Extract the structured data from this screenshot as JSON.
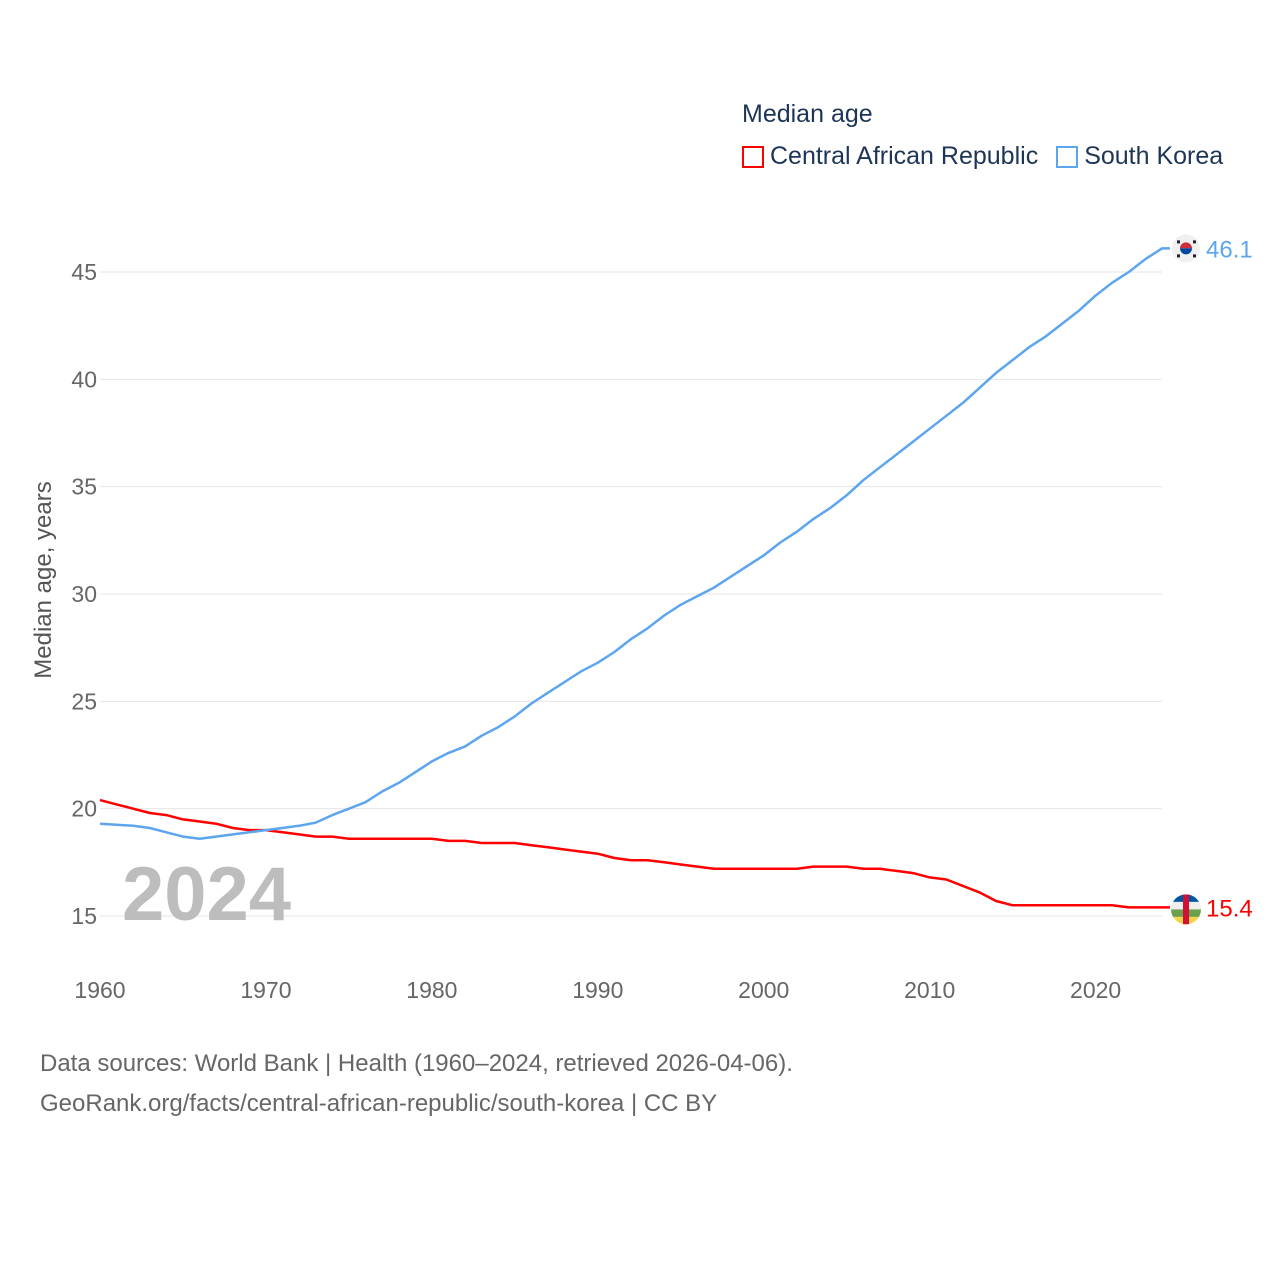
{
  "chart_data": {
    "type": "line",
    "title": "Median age",
    "ylabel": "Median age, years",
    "xlabel": "",
    "xlim": [
      1960,
      2024
    ],
    "ylim": [
      12.5,
      47
    ],
    "xticks": [
      1960,
      1970,
      1980,
      1990,
      2000,
      2010,
      2020
    ],
    "yticks": [
      15,
      20,
      25,
      30,
      35,
      40,
      45
    ],
    "grid": true,
    "legend_placement": "top-right",
    "year_watermark": "2024",
    "series": [
      {
        "name": "Central African Republic",
        "color": "#ff0000",
        "end_label": "15.4",
        "flag_icon": "central-african-republic-flag-icon",
        "values": [
          20.4,
          20.2,
          20.0,
          19.8,
          19.7,
          19.5,
          19.4,
          19.3,
          19.1,
          19.0,
          19.0,
          18.9,
          18.8,
          18.7,
          18.7,
          18.6,
          18.6,
          18.6,
          18.6,
          18.6,
          18.6,
          18.5,
          18.5,
          18.4,
          18.4,
          18.4,
          18.3,
          18.2,
          18.1,
          18.0,
          17.9,
          17.7,
          17.6,
          17.6,
          17.5,
          17.4,
          17.3,
          17.2,
          17.2,
          17.2,
          17.2,
          17.2,
          17.2,
          17.3,
          17.3,
          17.3,
          17.2,
          17.2,
          17.1,
          17.0,
          16.8,
          16.7,
          16.4,
          16.1,
          15.7,
          15.5,
          15.5,
          15.5,
          15.5,
          15.5,
          15.5,
          15.5,
          15.4,
          15.4,
          15.4
        ]
      },
      {
        "name": "South Korea",
        "color": "#5da5ee",
        "end_label": "46.1",
        "flag_icon": "south-korea-flag-icon",
        "values": [
          19.3,
          19.25,
          19.2,
          19.1,
          18.9,
          18.7,
          18.6,
          18.7,
          18.8,
          18.9,
          19.0,
          19.1,
          19.2,
          19.35,
          19.7,
          20.0,
          20.3,
          20.8,
          21.2,
          21.7,
          22.2,
          22.6,
          22.9,
          23.4,
          23.8,
          24.3,
          24.9,
          25.4,
          25.9,
          26.4,
          26.8,
          27.3,
          27.9,
          28.4,
          29.0,
          29.5,
          29.9,
          30.3,
          30.8,
          31.3,
          31.8,
          32.4,
          32.9,
          33.5,
          34.0,
          34.6,
          35.3,
          35.9,
          36.5,
          37.1,
          37.7,
          38.3,
          38.9,
          39.6,
          40.3,
          40.9,
          41.5,
          42.0,
          42.6,
          43.2,
          43.9,
          44.5,
          45.0,
          45.6,
          46.1
        ]
      }
    ]
  },
  "footer": {
    "line1": "Data sources: World Bank | Health (1960–2024, retrieved 2026-04-06).",
    "line2": "GeoRank.org/facts/central-african-republic/south-korea | CC BY"
  }
}
